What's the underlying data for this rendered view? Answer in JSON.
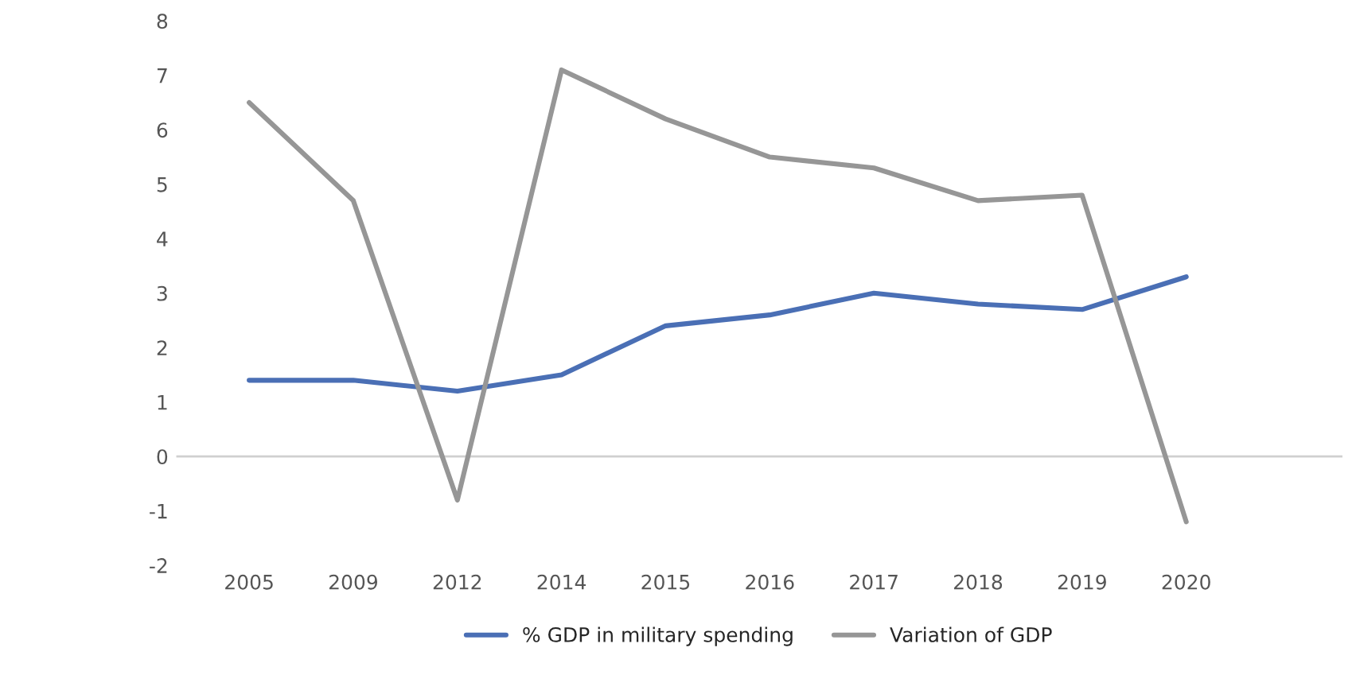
{
  "chart_data": {
    "type": "line",
    "categories": [
      "2005",
      "2009",
      "2012",
      "2014",
      "2015",
      "2016",
      "2017",
      "2018",
      "2019",
      "2020",
      null
    ],
    "series": [
      {
        "name": "% GDP in military spending",
        "color": "#4a6fb5",
        "values": [
          1.4,
          1.4,
          1.2,
          1.5,
          2.4,
          2.6,
          3.0,
          2.8,
          2.7,
          3.3,
          null
        ]
      },
      {
        "name": "Variation of GDP",
        "color": "#969696",
        "values": [
          6.5,
          4.7,
          -0.8,
          7.1,
          6.2,
          5.5,
          5.3,
          4.7,
          4.8,
          -1.2,
          null
        ]
      }
    ],
    "ylim": [
      -2,
      8
    ],
    "yticks": [
      -2,
      -1,
      0,
      1,
      2,
      3,
      4,
      5,
      6,
      7,
      8
    ],
    "ref_lines": [
      {
        "axis": "y",
        "value": 0,
        "color": "#d0d0d0"
      }
    ],
    "grid": false,
    "legend": "bottom",
    "marker": "none",
    "line_style": "solid"
  }
}
